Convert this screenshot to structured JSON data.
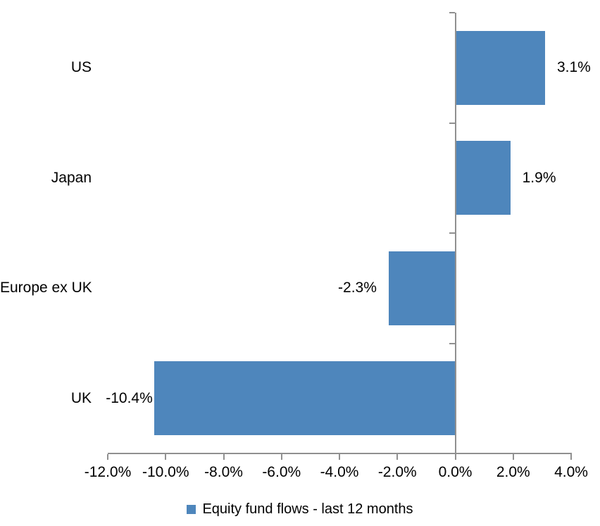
{
  "chart_data": {
    "type": "bar",
    "orientation": "horizontal",
    "title": "",
    "xlabel": "",
    "ylabel": "",
    "categories": [
      "US",
      "Japan",
      "Europe ex UK",
      "UK"
    ],
    "values": [
      3.1,
      1.9,
      -2.3,
      -10.4
    ],
    "data_labels": [
      "3.1%",
      "1.9%",
      "-2.3%",
      "-10.4%"
    ],
    "series_name": "Equity fund flows - last 12 months",
    "xlim": [
      -12,
      4
    ],
    "x_tick_step": 2,
    "x_tick_labels": [
      "-12.0%",
      "-10.0%",
      "-8.0%",
      "-6.0%",
      "-4.0%",
      "-2.0%",
      "0.0%",
      "2.0%",
      "4.0%"
    ],
    "grid": false,
    "legend_position": "bottom",
    "colors": {
      "bar": "#4E86BC",
      "axis": "#909090",
      "text": "#000000",
      "background": "#FFFFFF"
    }
  },
  "legend": {
    "label": "Equity fund flows - last 12 months"
  }
}
